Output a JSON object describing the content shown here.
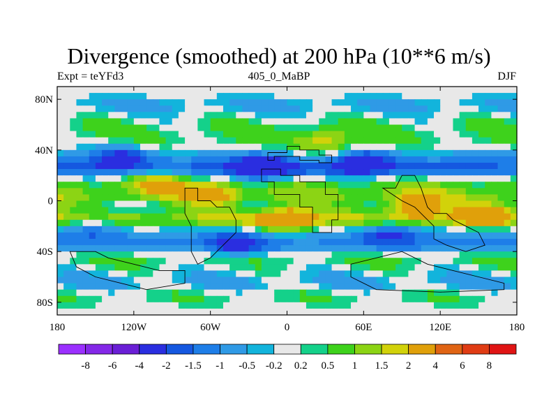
{
  "chart_data": {
    "type": "heatmap",
    "title": "Divergence (smoothed) at 200 hPa (10**6 m/s)",
    "left_label": "Expt = teYFd3",
    "center_label": "405_0_MaBP",
    "right_label": "DJF",
    "x_ticks": [
      "180",
      "120W",
      "60W",
      "0",
      "60E",
      "120E",
      "180"
    ],
    "x_tick_values": [
      -180,
      -120,
      -60,
      0,
      60,
      120,
      180
    ],
    "y_ticks": [
      "80N",
      "40N",
      "0",
      "40S",
      "80S"
    ],
    "y_tick_values": [
      80,
      40,
      0,
      -40,
      -80
    ],
    "xlim": [
      -180,
      180
    ],
    "ylim": [
      -90,
      90
    ],
    "colorbar": {
      "labels": [
        "-8",
        "-6",
        "-4",
        "-2",
        "-1.5",
        "-1",
        "-0.5",
        "-0.2",
        "0.2",
        "0.5",
        "1",
        "1.5",
        "2",
        "4",
        "6",
        "8"
      ],
      "colors": [
        "#9b30ff",
        "#8428e8",
        "#6a1fd6",
        "#2a2ee0",
        "#1558e0",
        "#1e7ee8",
        "#2f9ae6",
        "#12b4dc",
        "#e8e8e8",
        "#14d18a",
        "#3ed21c",
        "#8cd414",
        "#d2d20a",
        "#e0a00a",
        "#e06414",
        "#e03c14",
        "#e01414"
      ]
    },
    "bands": [
      {
        "lat": 85,
        "value": 0.0
      },
      {
        "lat": 75,
        "value": -0.6
      },
      {
        "lat": 65,
        "value": 0.1
      },
      {
        "lat": 55,
        "value": 0.6
      },
      {
        "lat": 45,
        "value": 0.4
      },
      {
        "lat": 35,
        "value": -0.8
      },
      {
        "lat": 25,
        "value": -1.8
      },
      {
        "lat": 15,
        "value": 0.7
      },
      {
        "lat": 5,
        "value": 1.2
      },
      {
        "lat": -5,
        "value": 0.3
      },
      {
        "lat": -15,
        "value": 1.6
      },
      {
        "lat": -25,
        "value": -0.7
      },
      {
        "lat": -35,
        "value": -1.2
      },
      {
        "lat": -45,
        "value": 0.6
      },
      {
        "lat": -55,
        "value": 0.0
      },
      {
        "lat": -65,
        "value": -0.6
      },
      {
        "lat": -75,
        "value": 0.4
      },
      {
        "lat": -85,
        "value": 0.0
      }
    ],
    "blobs": [
      {
        "lon": 100,
        "lat": -5,
        "value": 2.5
      },
      {
        "lon": 155,
        "lat": -10,
        "value": 2.3
      },
      {
        "lon": 0,
        "lat": -15,
        "value": 3.0
      },
      {
        "lon": -60,
        "lat": 5,
        "value": 1.8
      },
      {
        "lon": -100,
        "lat": 15,
        "value": 1.6
      },
      {
        "lon": 30,
        "lat": 45,
        "value": 1.7
      },
      {
        "lon": -20,
        "lat": 25,
        "value": -2.5
      },
      {
        "lon": 60,
        "lat": 30,
        "value": -1.8
      },
      {
        "lon": -130,
        "lat": 35,
        "value": -1.6
      },
      {
        "lon": -40,
        "lat": -35,
        "value": -1.8
      },
      {
        "lon": 80,
        "lat": -25,
        "value": -1.5
      },
      {
        "lon": -150,
        "lat": -20,
        "value": -1.2
      }
    ]
  }
}
